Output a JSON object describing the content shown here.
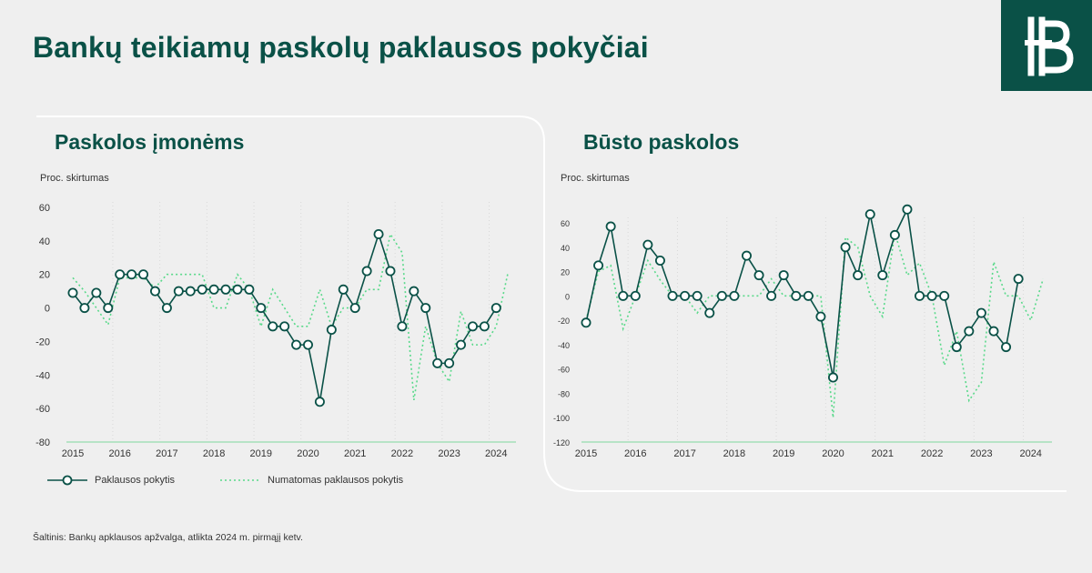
{
  "title": "Bankų teikiamų paskolų paklausos pokyčiai",
  "logo": {
    "icon": "lb-logo-icon",
    "background": "#0a5147"
  },
  "colors": {
    "actual": "#0a5147",
    "expected": "#59d98a",
    "axis": "#b7e3c6",
    "grid": "#d8d8d8"
  },
  "legend": {
    "actual": "Paklausos pokytis",
    "expected": "Numatomas paklausos pokytis"
  },
  "source": "Šaltinis: Bankų apklausos apžvalga, atlikta 2024 m. pirmąjį ketv.",
  "chart_data": [
    {
      "type": "line",
      "title": "Paskolos įmonėms",
      "ylabel": "Proc. skirtumas",
      "ylim": [
        -80,
        60
      ],
      "yticks": [
        60,
        40,
        20,
        0,
        -20,
        -40,
        -60,
        -80
      ],
      "xticks": [
        "2015",
        "2016",
        "2017",
        "2018",
        "2019",
        "2020",
        "2021",
        "2022",
        "2023",
        "2024"
      ],
      "series": [
        {
          "name": "Paklausos pokytis",
          "values": [
            9,
            0,
            9,
            0,
            20,
            20,
            20,
            10,
            0,
            10,
            10,
            11,
            11,
            11,
            11,
            11,
            0,
            -11,
            -11,
            -22,
            -22,
            -56,
            -13,
            11,
            0,
            22,
            44,
            22,
            -11,
            10,
            0,
            -33,
            -33,
            -22,
            -11,
            -11,
            0
          ]
        },
        {
          "name": "Numatomas paklausos pokytis",
          "values": [
            18,
            10,
            0,
            -10,
            18,
            18,
            18,
            12,
            20,
            20,
            20,
            20,
            0,
            0,
            20,
            11,
            -11,
            11,
            0,
            -11,
            -11,
            11,
            -11,
            0,
            0,
            11,
            11,
            44,
            33,
            -55,
            -11,
            -33,
            -44,
            -2,
            -22,
            -22,
            -11,
            21
          ]
        }
      ]
    },
    {
      "type": "line",
      "title": "Būsto paskolos",
      "ylabel": "Proc. skirtumas",
      "ylim": [
        -120,
        70
      ],
      "yticks": [
        60,
        40,
        20,
        0,
        -20,
        -40,
        -60,
        -80,
        -100,
        -120
      ],
      "xticks": [
        "2015",
        "2016",
        "2017",
        "2018",
        "2019",
        "2020",
        "2021",
        "2022",
        "2023",
        "2024"
      ],
      "series": [
        {
          "name": "Paklausos pokytis",
          "values": [
            -22,
            25,
            57,
            0,
            0,
            42,
            29,
            0,
            0,
            0,
            -14,
            0,
            0,
            33,
            17,
            0,
            17,
            0,
            0,
            -17,
            -67,
            40,
            17,
            67,
            17,
            50,
            71,
            0,
            0,
            0,
            -42,
            -29,
            -14,
            -29,
            -42,
            14
          ]
        },
        {
          "name": "Numatomas paklausos pokytis",
          "values": [
            -20,
            20,
            25,
            -27,
            0,
            29,
            13,
            0,
            0,
            -14,
            0,
            0,
            0,
            0,
            0,
            14,
            0,
            0,
            0,
            0,
            -100,
            48,
            40,
            0,
            -17,
            52,
            17,
            27,
            0,
            -57,
            -29,
            -86,
            -71,
            28,
            0,
            0,
            -20,
            14
          ]
        }
      ]
    }
  ]
}
